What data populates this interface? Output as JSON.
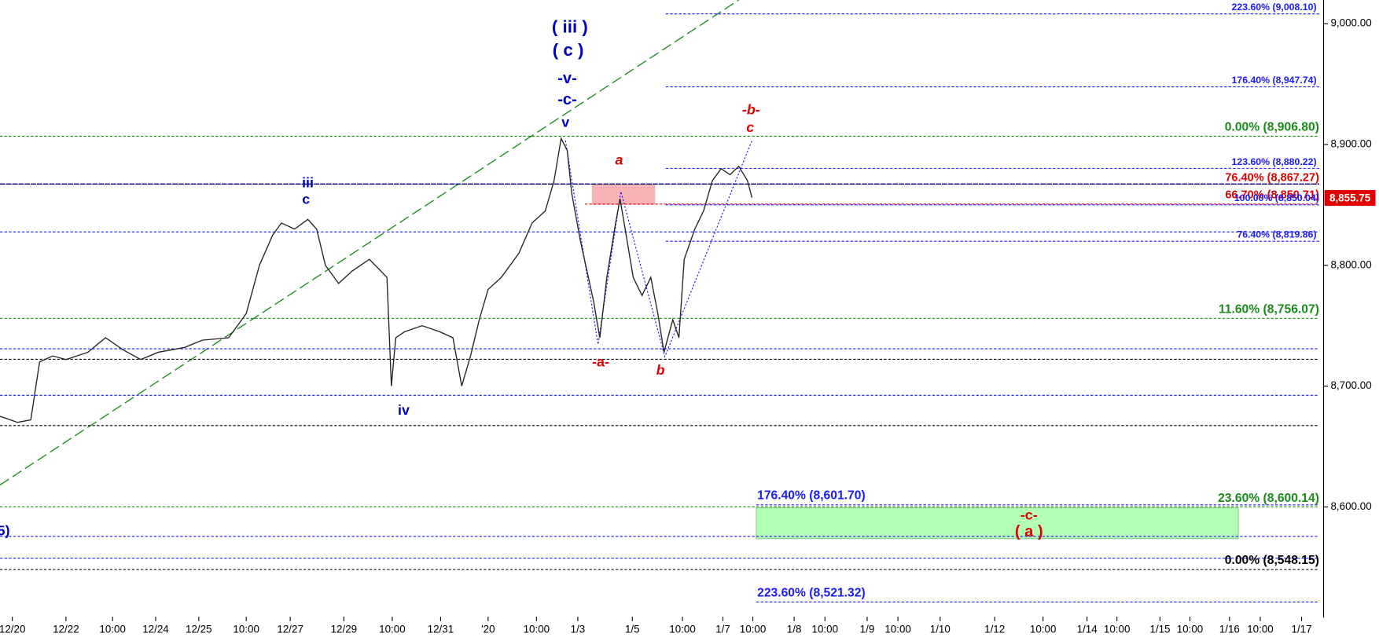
{
  "chart_data": {
    "type": "line",
    "series": [
      {
        "color": "#222222",
        "x": [
          0,
          20,
          35,
          45,
          60,
          75,
          100,
          120,
          140,
          160,
          180,
          210,
          230,
          260,
          280,
          295,
          310,
          320,
          335,
          350,
          360,
          370,
          385,
          400,
          420,
          440,
          445,
          450,
          460,
          480,
          500,
          515,
          525,
          535,
          545,
          555,
          570,
          590,
          605,
          620,
          630,
          638,
          645,
          650,
          660,
          675,
          682,
          690,
          700,
          705,
          712,
          720,
          730,
          740,
          748,
          755,
          765,
          772,
          778,
          790,
          800,
          810,
          820,
          830,
          840,
          850,
          855
        ],
        "values": [
          8675,
          8670,
          8672,
          8720,
          8725,
          8722,
          8728,
          8740,
          8730,
          8722,
          8728,
          8732,
          8738,
          8740,
          8760,
          8800,
          8825,
          8835,
          8830,
          8838,
          8830,
          8800,
          8785,
          8795,
          8805,
          8790,
          8700,
          8740,
          8745,
          8750,
          8745,
          8740,
          8700,
          8725,
          8755,
          8780,
          8790,
          8810,
          8835,
          8845,
          8870,
          8905,
          8895,
          8860,
          8820,
          8770,
          8740,
          8790,
          8835,
          8855,
          8825,
          8790,
          8775,
          8790,
          8760,
          8728,
          8755,
          8740,
          8805,
          8830,
          8845,
          8870,
          8880,
          8875,
          8882,
          8870,
          8856
        ]
      }
    ],
    "xlim": [
      0,
      1500
    ],
    "ylim": [
      8510.5,
      9019.6
    ],
    "xticks": [
      {
        "value": 14,
        "label": "12/20"
      },
      {
        "value": 75,
        "label": "12/22"
      },
      {
        "value": 128,
        "label": "10:00"
      },
      {
        "value": 177,
        "label": "12/24"
      },
      {
        "value": 226,
        "label": "12/25"
      },
      {
        "value": 280,
        "label": "10:00"
      },
      {
        "value": 330,
        "label": "12/27"
      },
      {
        "value": 391,
        "label": "12/29"
      },
      {
        "value": 446,
        "label": "10:00"
      },
      {
        "value": 501,
        "label": "12/31"
      },
      {
        "value": 555,
        "label": "'20"
      },
      {
        "value": 610,
        "label": "10:00"
      },
      {
        "value": 657,
        "label": "1/3"
      },
      {
        "value": 719,
        "label": "1/5"
      },
      {
        "value": 776,
        "label": "10:00"
      },
      {
        "value": 822,
        "label": "1/7"
      },
      {
        "value": 856,
        "label": "10:00"
      },
      {
        "value": 903,
        "label": "1/8"
      },
      {
        "value": 938,
        "label": "10:00"
      },
      {
        "value": 986,
        "label": "1/9"
      },
      {
        "value": 1021,
        "label": "10:00"
      },
      {
        "value": 1069,
        "label": "1/10"
      },
      {
        "value": 1131,
        "label": "1/12"
      },
      {
        "value": 1186,
        "label": "10:00"
      },
      {
        "value": 1236,
        "label": "1/14"
      },
      {
        "value": 1270,
        "label": "10:00"
      },
      {
        "value": 1319,
        "label": "1/15"
      },
      {
        "value": 1353,
        "label": "10:00"
      },
      {
        "value": 1398,
        "label": "1/16"
      },
      {
        "value": 1433,
        "label": "10:00"
      },
      {
        "value": 1480,
        "label": "1/17"
      }
    ],
    "yticks": [
      {
        "value": 8600,
        "label": "8,600.00"
      },
      {
        "value": 8700,
        "label": "8,700.00"
      },
      {
        "value": 8800,
        "label": "8,800.00"
      },
      {
        "value": 8900,
        "label": "8,900.00"
      },
      {
        "value": 9000,
        "label": "9,000.00"
      }
    ],
    "levels": [
      {
        "label": "223.60% (9,008.10)",
        "value": 9008.1,
        "color": "#1a1aff"
      },
      {
        "label": "176.40% (8,947.74)",
        "value": 8947.74,
        "color": "#1a1aff"
      },
      {
        "label": "0.00% (8,906.80)",
        "value": 8906.8,
        "color": "#1a8c1a"
      },
      {
        "label": "123.60% (8,880.22)",
        "value": 8880.22,
        "color": "#1a1aff"
      },
      {
        "label": "76.40% (8,867.27)",
        "value": 8867.27,
        "color": "#e00000"
      },
      {
        "label": "66.70% (8,850.71)",
        "value": 8850.71,
        "color": "#e00000"
      },
      {
        "label": "100.00% (8,850.04)",
        "value": 8850.04,
        "color": "#1a1aff"
      },
      {
        "label": "76.40% (8,819.86)",
        "value": 8819.86,
        "color": "#1a1aff"
      },
      {
        "label": "11.60% (8,756.07)",
        "value": 8756.07,
        "color": "#1a8c1a"
      },
      {
        "label": "176.40% (8,601.70)",
        "value": 8601.7,
        "color": "#1a1aff"
      },
      {
        "label": "23.60% (8,600.14)",
        "value": 8600.14,
        "color": "#1a8c1a"
      },
      {
        "label": "0.00% (8,548.15)",
        "value": 8548.15,
        "color": "#000000"
      },
      {
        "label": "223.60% (8,521.32)",
        "value": 8521.32,
        "color": "#1a1aff"
      }
    ],
    "unlabeled_levels": [
      8827.6,
      8730.9,
      8722.2,
      8692.4,
      8667.3,
      8575.6,
      8557.5
    ],
    "last_price": {
      "value": 8855.75,
      "label": "8,855.75",
      "color": "#e00000"
    },
    "annotations": [
      {
        "text": "( iii )",
        "color": "#0000cc"
      },
      {
        "text": "( c )",
        "color": "#0000cc"
      },
      {
        "text": "-v-",
        "color": "#0000cc"
      },
      {
        "text": "-c-",
        "color": "#0000cc"
      },
      {
        "text": "v",
        "color": "#0000cc"
      },
      {
        "text": "iii",
        "color": "#0000cc"
      },
      {
        "text": "c",
        "color": "#0000cc"
      },
      {
        "text": "iv",
        "color": "#0000cc"
      },
      {
        "text": "a",
        "color": "#e00000"
      },
      {
        "text": "-a-",
        "color": "#e00000"
      },
      {
        "text": "b",
        "color": "#e00000"
      },
      {
        "text": "-b-",
        "color": "#e00000"
      },
      {
        "text": "c",
        "color": "#e00000"
      },
      {
        "text": "-c-",
        "color": "#e00000"
      },
      {
        "text": "( a )",
        "color": "#e00000"
      },
      {
        "text": "5)",
        "color": "#0000cc"
      }
    ]
  }
}
